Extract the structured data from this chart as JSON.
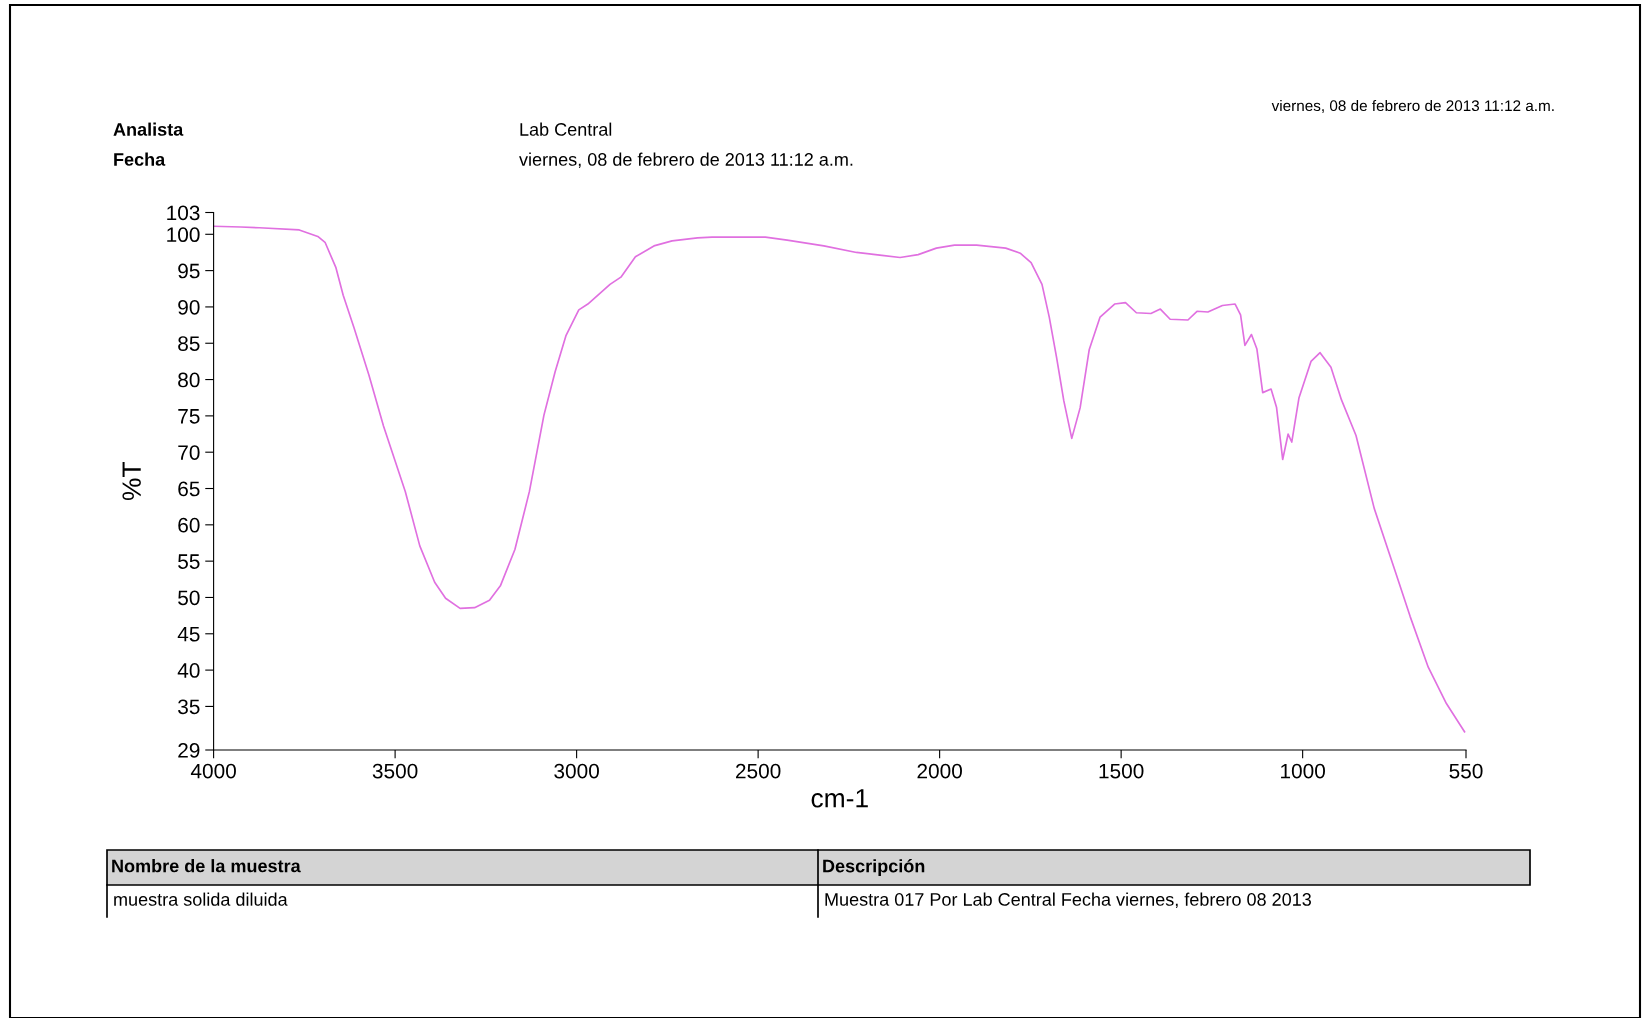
{
  "chart_data": {
    "type": "line",
    "xlabel": "cm-1",
    "ylabel": "%T",
    "xlim": [
      4000,
      550
    ],
    "xticks": [
      4000,
      3500,
      3000,
      2500,
      2000,
      1500,
      1000,
      550
    ],
    "ylim": [
      29,
      103
    ],
    "yticks": [
      29,
      35,
      40,
      45,
      50,
      55,
      60,
      65,
      70,
      75,
      80,
      85,
      90,
      95,
      100,
      103
    ],
    "grid": false,
    "legend": false,
    "series": [
      {
        "color": "#e070e0",
        "x": [
          4000,
          3925,
          3874,
          3764,
          3713,
          3693,
          3663,
          3643,
          3613,
          3572,
          3532,
          3472,
          3432,
          3391,
          3361,
          3321,
          3281,
          3240,
          3210,
          3170,
          3130,
          3090,
          3059,
          3029,
          2994,
          2969,
          2908,
          2878,
          2838,
          2787,
          2737,
          2667,
          2627,
          2480,
          2420,
          2319,
          2229,
          2159,
          2109,
          2059,
          2009,
          1959,
          1898,
          1818,
          1778,
          1748,
          1718,
          1698,
          1678,
          1658,
          1636,
          1613,
          1588,
          1558,
          1518,
          1488,
          1458,
          1418,
          1392,
          1365,
          1316,
          1291,
          1261,
          1221,
          1186,
          1171,
          1159,
          1141,
          1126,
          1110,
          1087,
          1072,
          1055,
          1040,
          1030,
          1010,
          977,
          952,
          922,
          893,
          853,
          803,
          743,
          704,
          654,
          604,
          554
        ],
        "values": [
          101.1,
          101.0,
          100.9,
          100.6,
          99.7,
          98.9,
          95.4,
          91.6,
          87.1,
          80.6,
          73.6,
          64.6,
          57.1,
          52.1,
          49.9,
          48.5,
          48.6,
          49.6,
          51.6,
          56.6,
          64.6,
          75.1,
          81.1,
          86.1,
          89.6,
          90.4,
          93.1,
          94.1,
          96.9,
          98.4,
          99.1,
          99.5,
          99.6,
          99.6,
          99.2,
          98.4,
          97.5,
          97.1,
          96.8,
          97.2,
          98.1,
          98.5,
          98.5,
          98.1,
          97.4,
          96.1,
          93.1,
          88.6,
          83.1,
          77.1,
          71.9,
          76.1,
          84.1,
          88.6,
          90.4,
          90.6,
          89.2,
          89.1,
          89.7,
          88.3,
          88.2,
          89.4,
          89.3,
          90.2,
          90.4,
          88.9,
          84.7,
          86.2,
          84.2,
          78.2,
          78.7,
          76.2,
          69.0,
          72.5,
          71.4,
          77.5,
          82.5,
          83.7,
          81.7,
          77.2,
          72.3,
          62.3,
          53.3,
          47.4,
          40.4,
          35.4,
          31.5
        ]
      }
    ],
    "annotations": [
      "viernes, 08 de febrero de 2013 11:12 a.m.",
      "Analista",
      "Fecha",
      "Lab Central",
      "viernes, 08 de febrero de 2013 11:12 a.m.",
      "Nombre de la muestra",
      "Descripción",
      "muestra solida diluida",
      "Muestra 017 Por Lab Central Fecha viernes, febrero 08 2013"
    ]
  }
}
